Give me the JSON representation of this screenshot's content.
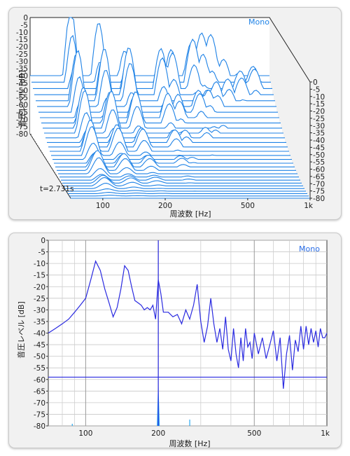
{
  "charts": {
    "top": {
      "type": "waterfall",
      "channel": "Mono",
      "time_label": "t=2.731s",
      "xlabel": "周波数 [Hz]",
      "ylabel": "音圧レベル [dB]",
      "x_ticks": [
        "100",
        "200",
        "500",
        "1k"
      ],
      "y_ticks": [
        "0",
        "-5",
        "-10",
        "-15",
        "-20",
        "-25",
        "-30",
        "-35",
        "-40",
        "-45",
        "-50",
        "-55",
        "-60",
        "-65",
        "-70",
        "-75",
        "-80"
      ],
      "line_color": "#1e82e6"
    },
    "bottom": {
      "type": "line",
      "channel": "Mono",
      "xlabel": "周波数 [Hz]",
      "ylabel": "音圧レベル [dB]",
      "x_ticks": [
        "100",
        "200",
        "500",
        "1k"
      ],
      "y_ticks": [
        "0",
        "-5",
        "-10",
        "-15",
        "-20",
        "-25",
        "-30",
        "-35",
        "-40",
        "-45",
        "-50",
        "-55",
        "-60",
        "-65",
        "-70",
        "-75",
        "-80"
      ],
      "line_color": "#2a2ae0"
    }
  },
  "chart_data": [
    {
      "type": "area",
      "title": "",
      "xlabel": "周波数 [Hz]",
      "ylabel": "音圧レベル [dB]",
      "xscale": "log",
      "xlim": [
        70,
        1000
      ],
      "ylim": [
        -80,
        0
      ],
      "grid": false,
      "legend": "Mono",
      "time": "t=2.731s",
      "slices": 30,
      "peaks_hz": [
        110,
        150,
        200,
        290,
        330,
        420,
        470,
        520,
        600,
        700,
        820
      ],
      "peaks_db": [
        -5,
        -7,
        -10,
        -15,
        -20,
        -18,
        -22,
        -20,
        -25,
        -24,
        -27
      ]
    },
    {
      "type": "line",
      "title": "",
      "xlabel": "周波数 [Hz]",
      "ylabel": "音圧レベル [dB]",
      "xscale": "log",
      "xlim": [
        70,
        1000
      ],
      "ylim": [
        -80,
        0
      ],
      "grid": true,
      "legend": "Mono",
      "series": [
        {
          "x": [
            70,
            75,
            80,
            85,
            90,
            95,
            100,
            105,
            110,
            115,
            120,
            125,
            130,
            135,
            140,
            145,
            150,
            155,
            160,
            165,
            170,
            175,
            180,
            185,
            190,
            195,
            200,
            205,
            210,
            220,
            230,
            240,
            250,
            260,
            270,
            280,
            290,
            300,
            310,
            320,
            330,
            340,
            350,
            360,
            370,
            380,
            390,
            400,
            410,
            420,
            430,
            440,
            450,
            460,
            470,
            480,
            490,
            500,
            520,
            540,
            560,
            580,
            600,
            620,
            640,
            660,
            680,
            700,
            720,
            740,
            760,
            780,
            800,
            820,
            840,
            860,
            880,
            900,
            920,
            940,
            960,
            980,
            1000
          ],
          "y": [
            -40,
            -38,
            -36,
            -34,
            -31,
            -28,
            -25,
            -17,
            -9,
            -13,
            -21,
            -27,
            -33,
            -29,
            -21,
            -11,
            -13,
            -20,
            -26,
            -27,
            -28,
            -30,
            -29,
            -30,
            -28,
            -34,
            -17,
            -23,
            -31,
            -31,
            -33,
            -32,
            -36,
            -30,
            -34,
            -28,
            -19,
            -35,
            -44,
            -37,
            -25,
            -36,
            -44,
            -38,
            -47,
            -33,
            -47,
            -52,
            -38,
            -49,
            -55,
            -42,
            -52,
            -38,
            -46,
            -44,
            -51,
            -40,
            -49,
            -42,
            -51,
            -45,
            -39,
            -52,
            -42,
            -64,
            -49,
            -41,
            -56,
            -43,
            -48,
            -37,
            -47,
            -37,
            -45,
            -38,
            -44,
            -39,
            -46,
            -38,
            -42,
            -42,
            -40
          ]
        }
      ],
      "annotations": {
        "cursor_hz": 200,
        "threshold_db": -59
      }
    }
  ]
}
